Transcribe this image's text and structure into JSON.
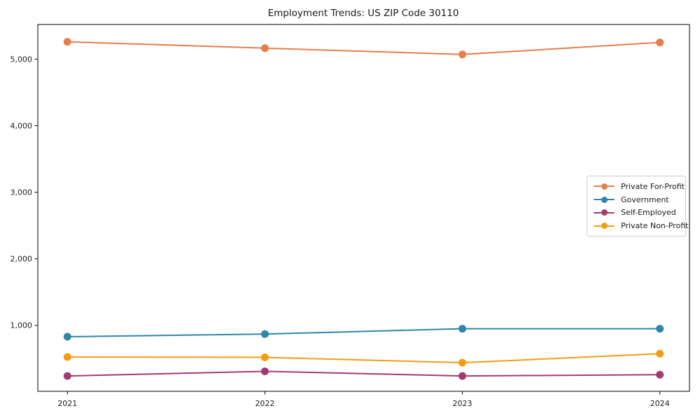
{
  "title": "Employment Trends: US ZIP Code 30110",
  "chart_data": {
    "type": "line",
    "title": "Employment Trends: US ZIP Code 30110",
    "xlabel": "",
    "ylabel": "",
    "x": [
      2021,
      2022,
      2023,
      2024
    ],
    "x_tick_labels": [
      "2021",
      "2022",
      "2023",
      "2024"
    ],
    "y_ticks": [
      {
        "value": 1000,
        "label": "1,000"
      },
      {
        "value": 2000,
        "label": "2,000"
      },
      {
        "value": 3000,
        "label": "3,000"
      },
      {
        "value": 4000,
        "label": "4,000"
      },
      {
        "value": 5000,
        "label": "5,000"
      }
    ],
    "series": [
      {
        "name": "Private For-Profit",
        "color": "#E77E4A",
        "values": [
          5260,
          5165,
          5070,
          5250
        ]
      },
      {
        "name": "Government",
        "color": "#2E86AB",
        "values": [
          830,
          870,
          950,
          950
        ]
      },
      {
        "name": "Self-Employed",
        "color": "#A23B72",
        "values": [
          240,
          310,
          240,
          260
        ]
      },
      {
        "name": "Private Non-Profit",
        "color": "#F39C12",
        "values": [
          525,
          520,
          440,
          575
        ]
      }
    ],
    "xlim": [
      2020.85,
      2024.15
    ],
    "ylim": [
      10,
      5520
    ],
    "grid": false,
    "legend_position": "center right",
    "marker": "circle",
    "background": "#ffffff",
    "spine_color": "#000000"
  }
}
